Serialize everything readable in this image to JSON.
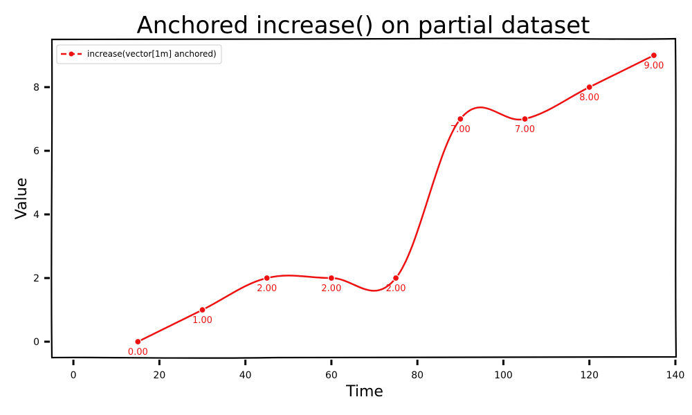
{
  "chart_data": {
    "type": "line",
    "title": "Anchored increase() on partial dataset",
    "xlabel": "Time",
    "ylabel": "Value",
    "xlim": [
      -5,
      140
    ],
    "ylim": [
      -0.5,
      9.5
    ],
    "xticks": [
      0,
      20,
      40,
      60,
      80,
      100,
      120,
      140
    ],
    "yticks": [
      0,
      2,
      4,
      6,
      8
    ],
    "grid": false,
    "legend_position": "top-left",
    "series": [
      {
        "name": "increase(vector[1m] anchored)",
        "color": "#ee1111",
        "x": [
          15,
          30,
          45,
          60,
          75,
          90,
          105,
          120,
          135
        ],
        "y": [
          0,
          1,
          2,
          2,
          2,
          7,
          7,
          8,
          9
        ],
        "labels": [
          "0.00",
          "1.00",
          "2.00",
          "2.00",
          "2.00",
          "7.00",
          "7.00",
          "8.00",
          "9.00"
        ]
      }
    ]
  }
}
